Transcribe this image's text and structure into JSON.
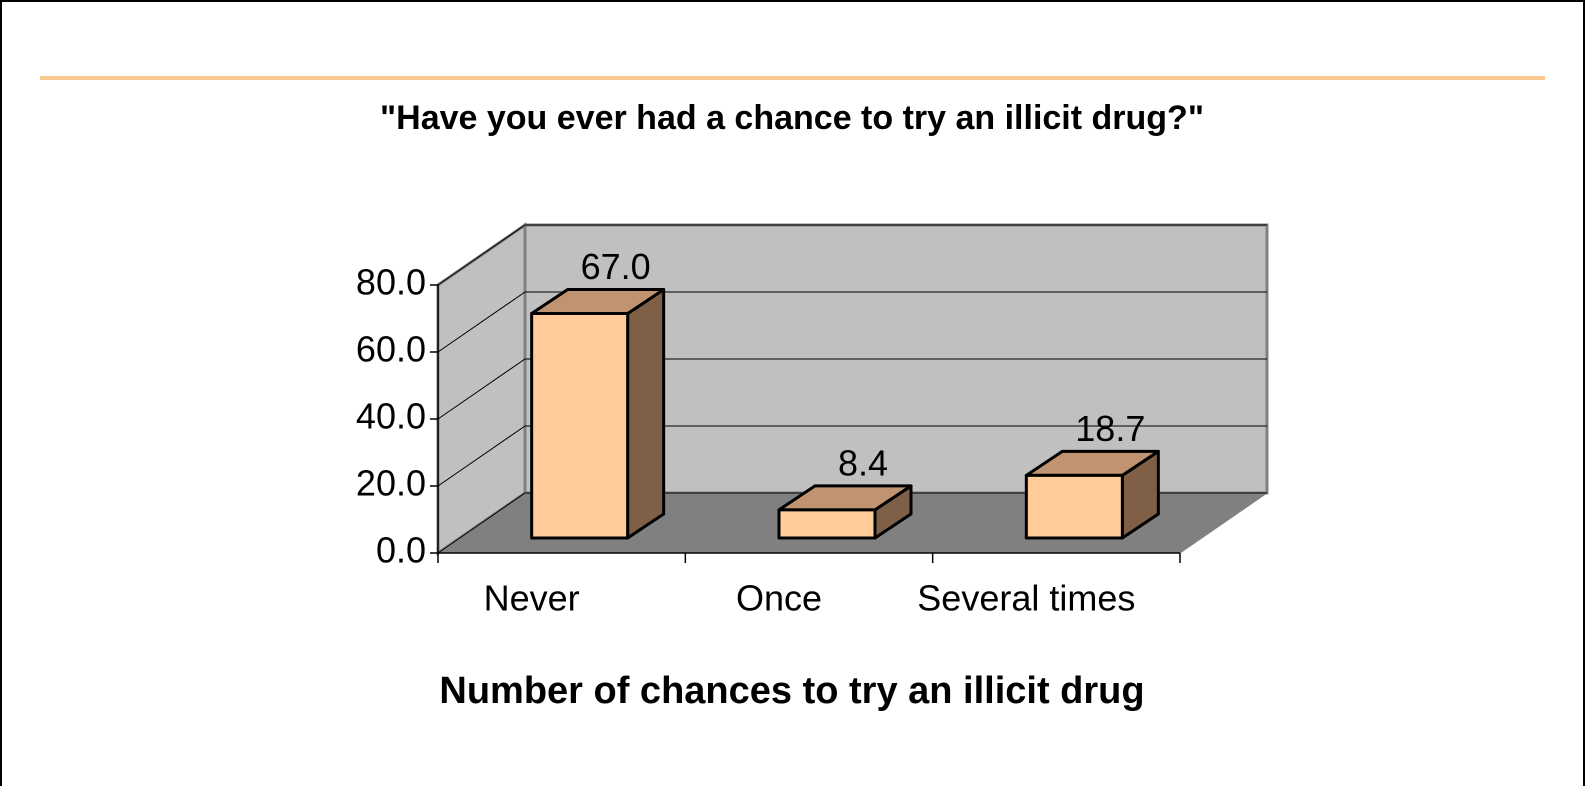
{
  "chart_data": {
    "type": "bar3d",
    "title": "\"Have you ever had a chance to try an illicit drug?\"",
    "x_label": "Number of chances to try an illicit drug",
    "categories": [
      "Never",
      "Once",
      "Several times"
    ],
    "values": [
      67.0,
      8.4,
      18.7
    ],
    "value_labels": [
      "67.0",
      "8.4",
      "18.7"
    ],
    "color": "#ffcc99",
    "ylim": [
      0,
      80
    ],
    "yticks": [
      {
        "value": 0,
        "label": "0.0"
      },
      {
        "value": 20,
        "label": "20.0"
      },
      {
        "value": 40,
        "label": "40.0"
      },
      {
        "value": 60,
        "label": "60.0"
      },
      {
        "value": 80,
        "label": "80.0"
      }
    ],
    "grid": true
  }
}
